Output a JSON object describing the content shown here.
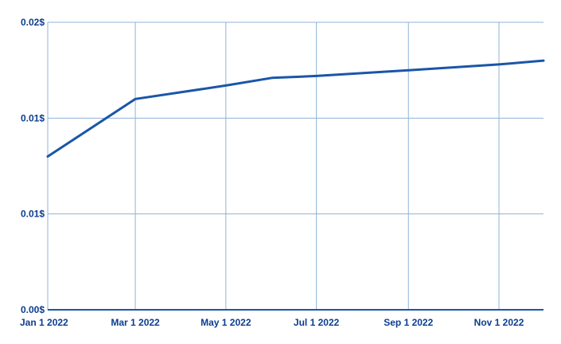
{
  "chart_data": {
    "type": "line",
    "title": "",
    "xlabel": "",
    "ylabel": "",
    "x": [
      "2022-01-01",
      "2022-03-01",
      "2022-05-01",
      "2022-06-01",
      "2022-07-01",
      "2022-09-01",
      "2022-11-01",
      "2022-12-01"
    ],
    "series": [
      {
        "values": [
          0.008,
          0.011,
          0.0117,
          0.0121,
          0.0122,
          0.0125,
          0.0128,
          0.013
        ]
      }
    ],
    "ylim": [
      0,
      0.015
    ],
    "yticks": [
      0,
      0.005,
      0.01,
      0.015
    ],
    "ytick_labels": [
      "0.00$",
      "0.01$",
      "0.01$",
      "0.02$"
    ],
    "xticks": [
      "2022-01-01",
      "2022-03-01",
      "2022-05-01",
      "2022-07-01",
      "2022-09-01",
      "2022-11-01"
    ],
    "xtick_labels": [
      "Jan 1 2022",
      "Mar 1 2022",
      "May 1 2022",
      "Jul 1 2022",
      "Sep 1 2022",
      "Nov 1 2022"
    ],
    "xlim": [
      "2022-01-01",
      "2022-12-01"
    ],
    "grid": true,
    "legend": "none",
    "colors": {
      "line": "#1a56a8",
      "grid": "#8fb3d9",
      "text": "#0b3d91"
    }
  }
}
